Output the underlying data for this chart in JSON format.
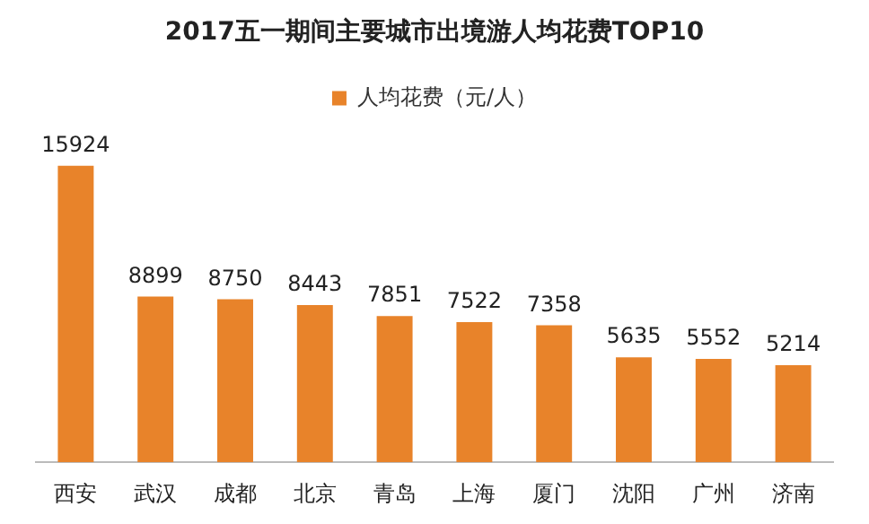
{
  "chart_data": {
    "type": "bar",
    "title": "2017五一期间主要城市出境游人均花费TOP10",
    "categories": [
      "西安",
      "武汉",
      "成都",
      "北京",
      "青岛",
      "上海",
      "厦门",
      "沈阳",
      "广州",
      "济南"
    ],
    "series": [
      {
        "name": "人均花费（元/人）",
        "color": "#e8832a",
        "values": [
          15924,
          8899,
          8750,
          8443,
          7851,
          7522,
          7358,
          5635,
          5552,
          5214
        ]
      }
    ],
    "data_labels": true,
    "legend": "top",
    "grid": false,
    "tick_labels": "x"
  }
}
